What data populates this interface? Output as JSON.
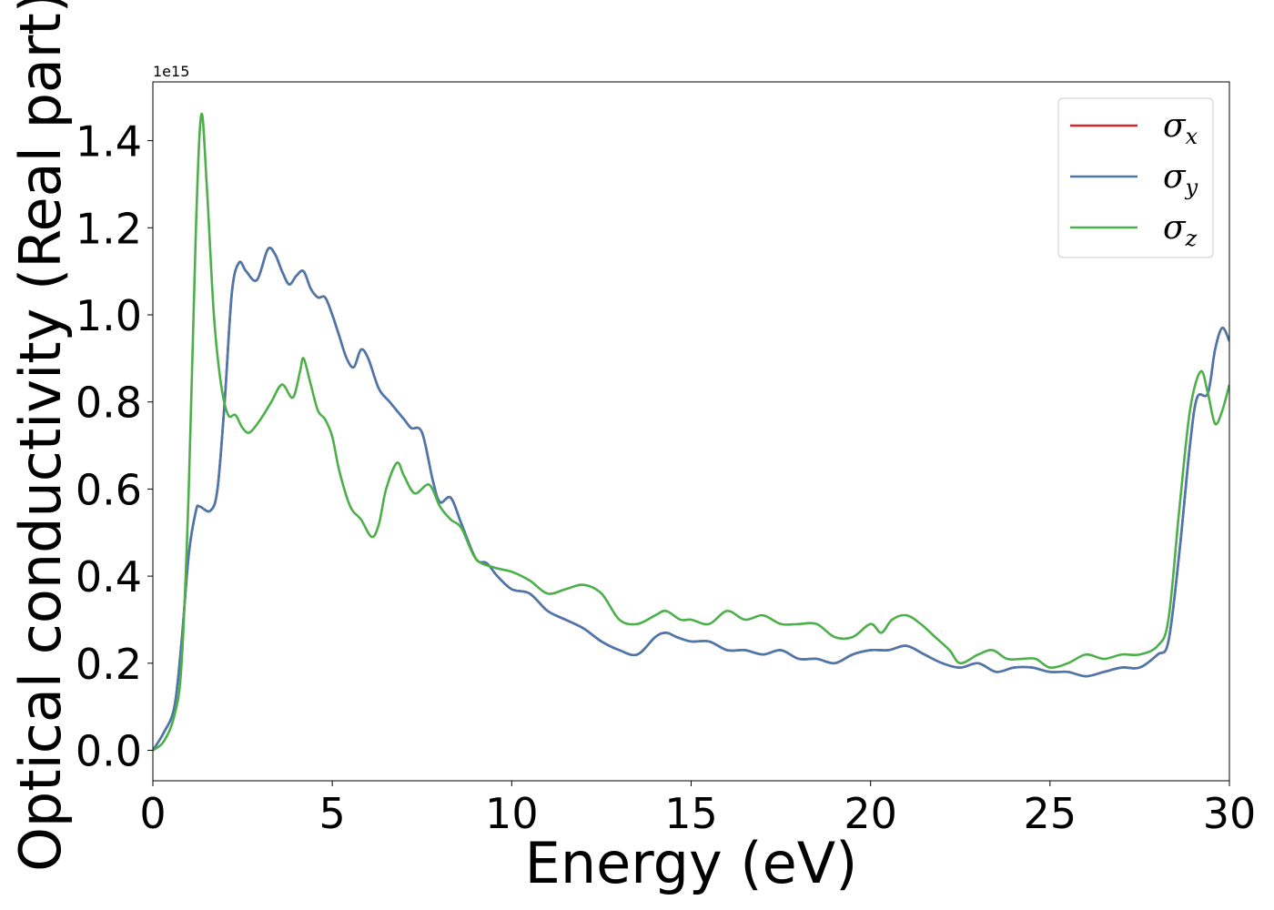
{
  "chart_data": {
    "type": "line",
    "xlabel": "Energy (eV)",
    "ylabel": "Optical conductivity (Real part)",
    "y_offset_label": "1e15",
    "xlim": [
      0,
      30
    ],
    "ylim": [
      -0.07,
      1.535
    ],
    "x_ticks": [
      0,
      5,
      10,
      15,
      20,
      25,
      30
    ],
    "x_tick_labels": [
      "0",
      "5",
      "10",
      "15",
      "20",
      "25",
      "30"
    ],
    "y_ticks": [
      0.0,
      0.2,
      0.4,
      0.6,
      0.8,
      1.0,
      1.2,
      1.4
    ],
    "y_tick_labels": [
      "0.0",
      "0.2",
      "0.4",
      "0.6",
      "0.8",
      "1.0",
      "1.2",
      "1.4"
    ],
    "grid": false,
    "legend_position": "top-right",
    "series": [
      {
        "name": "σ",
        "subscript": "x",
        "color": "#d62728",
        "points": [
          [
            0,
            0.0
          ],
          [
            0.3,
            0.04
          ],
          [
            0.6,
            0.1
          ],
          [
            0.8,
            0.25
          ],
          [
            1.0,
            0.45
          ],
          [
            1.2,
            0.55
          ],
          [
            1.3,
            0.56
          ],
          [
            1.6,
            0.55
          ],
          [
            1.8,
            0.6
          ],
          [
            2.0,
            0.8
          ],
          [
            2.2,
            1.05
          ],
          [
            2.4,
            1.12
          ],
          [
            2.6,
            1.1
          ],
          [
            2.9,
            1.08
          ],
          [
            3.2,
            1.15
          ],
          [
            3.4,
            1.14
          ],
          [
            3.6,
            1.1
          ],
          [
            3.8,
            1.07
          ],
          [
            4.0,
            1.09
          ],
          [
            4.2,
            1.1
          ],
          [
            4.4,
            1.06
          ],
          [
            4.6,
            1.04
          ],
          [
            4.8,
            1.04
          ],
          [
            5.0,
            1.0
          ],
          [
            5.2,
            0.95
          ],
          [
            5.4,
            0.9
          ],
          [
            5.6,
            0.88
          ],
          [
            5.8,
            0.92
          ],
          [
            6.0,
            0.9
          ],
          [
            6.3,
            0.83
          ],
          [
            6.6,
            0.8
          ],
          [
            7.0,
            0.76
          ],
          [
            7.2,
            0.74
          ],
          [
            7.5,
            0.73
          ],
          [
            7.8,
            0.62
          ],
          [
            8.0,
            0.57
          ],
          [
            8.3,
            0.58
          ],
          [
            8.6,
            0.52
          ],
          [
            9.0,
            0.44
          ],
          [
            9.3,
            0.43
          ],
          [
            9.6,
            0.4
          ],
          [
            10.0,
            0.37
          ],
          [
            10.5,
            0.36
          ],
          [
            11.0,
            0.32
          ],
          [
            11.5,
            0.3
          ],
          [
            12.0,
            0.28
          ],
          [
            12.5,
            0.25
          ],
          [
            13.0,
            0.23
          ],
          [
            13.5,
            0.22
          ],
          [
            14.0,
            0.26
          ],
          [
            14.3,
            0.27
          ],
          [
            14.6,
            0.26
          ],
          [
            15.0,
            0.25
          ],
          [
            15.5,
            0.25
          ],
          [
            16.0,
            0.23
          ],
          [
            16.5,
            0.23
          ],
          [
            17.0,
            0.22
          ],
          [
            17.5,
            0.23
          ],
          [
            18.0,
            0.21
          ],
          [
            18.5,
            0.21
          ],
          [
            19.0,
            0.2
          ],
          [
            19.5,
            0.22
          ],
          [
            20.0,
            0.23
          ],
          [
            20.5,
            0.23
          ],
          [
            21.0,
            0.24
          ],
          [
            21.5,
            0.22
          ],
          [
            22.0,
            0.2
          ],
          [
            22.5,
            0.19
          ],
          [
            23.0,
            0.2
          ],
          [
            23.5,
            0.18
          ],
          [
            24.0,
            0.19
          ],
          [
            24.5,
            0.19
          ],
          [
            25.0,
            0.18
          ],
          [
            25.5,
            0.18
          ],
          [
            26.0,
            0.17
          ],
          [
            26.5,
            0.18
          ],
          [
            27.0,
            0.19
          ],
          [
            27.5,
            0.19
          ],
          [
            28.0,
            0.22
          ],
          [
            28.3,
            0.25
          ],
          [
            28.6,
            0.45
          ],
          [
            28.9,
            0.7
          ],
          [
            29.1,
            0.81
          ],
          [
            29.4,
            0.82
          ],
          [
            29.6,
            0.92
          ],
          [
            29.8,
            0.97
          ],
          [
            30.0,
            0.94
          ]
        ]
      },
      {
        "name": "σ",
        "subscript": "y",
        "color": "#4a78ad",
        "points": [
          [
            0,
            0.0
          ],
          [
            0.3,
            0.04
          ],
          [
            0.6,
            0.1
          ],
          [
            0.8,
            0.25
          ],
          [
            1.0,
            0.45
          ],
          [
            1.2,
            0.55
          ],
          [
            1.3,
            0.56
          ],
          [
            1.6,
            0.55
          ],
          [
            1.8,
            0.6
          ],
          [
            2.0,
            0.8
          ],
          [
            2.2,
            1.05
          ],
          [
            2.4,
            1.12
          ],
          [
            2.6,
            1.1
          ],
          [
            2.9,
            1.08
          ],
          [
            3.2,
            1.15
          ],
          [
            3.4,
            1.14
          ],
          [
            3.6,
            1.1
          ],
          [
            3.8,
            1.07
          ],
          [
            4.0,
            1.09
          ],
          [
            4.2,
            1.1
          ],
          [
            4.4,
            1.06
          ],
          [
            4.6,
            1.04
          ],
          [
            4.8,
            1.04
          ],
          [
            5.0,
            1.0
          ],
          [
            5.2,
            0.95
          ],
          [
            5.4,
            0.9
          ],
          [
            5.6,
            0.88
          ],
          [
            5.8,
            0.92
          ],
          [
            6.0,
            0.9
          ],
          [
            6.3,
            0.83
          ],
          [
            6.6,
            0.8
          ],
          [
            7.0,
            0.76
          ],
          [
            7.2,
            0.74
          ],
          [
            7.5,
            0.73
          ],
          [
            7.8,
            0.62
          ],
          [
            8.0,
            0.57
          ],
          [
            8.3,
            0.58
          ],
          [
            8.6,
            0.52
          ],
          [
            9.0,
            0.44
          ],
          [
            9.3,
            0.43
          ],
          [
            9.6,
            0.4
          ],
          [
            10.0,
            0.37
          ],
          [
            10.5,
            0.36
          ],
          [
            11.0,
            0.32
          ],
          [
            11.5,
            0.3
          ],
          [
            12.0,
            0.28
          ],
          [
            12.5,
            0.25
          ],
          [
            13.0,
            0.23
          ],
          [
            13.5,
            0.22
          ],
          [
            14.0,
            0.26
          ],
          [
            14.3,
            0.27
          ],
          [
            14.6,
            0.26
          ],
          [
            15.0,
            0.25
          ],
          [
            15.5,
            0.25
          ],
          [
            16.0,
            0.23
          ],
          [
            16.5,
            0.23
          ],
          [
            17.0,
            0.22
          ],
          [
            17.5,
            0.23
          ],
          [
            18.0,
            0.21
          ],
          [
            18.5,
            0.21
          ],
          [
            19.0,
            0.2
          ],
          [
            19.5,
            0.22
          ],
          [
            20.0,
            0.23
          ],
          [
            20.5,
            0.23
          ],
          [
            21.0,
            0.24
          ],
          [
            21.5,
            0.22
          ],
          [
            22.0,
            0.2
          ],
          [
            22.5,
            0.19
          ],
          [
            23.0,
            0.2
          ],
          [
            23.5,
            0.18
          ],
          [
            24.0,
            0.19
          ],
          [
            24.5,
            0.19
          ],
          [
            25.0,
            0.18
          ],
          [
            25.5,
            0.18
          ],
          [
            26.0,
            0.17
          ],
          [
            26.5,
            0.18
          ],
          [
            27.0,
            0.19
          ],
          [
            27.5,
            0.19
          ],
          [
            28.0,
            0.22
          ],
          [
            28.3,
            0.25
          ],
          [
            28.6,
            0.45
          ],
          [
            28.9,
            0.7
          ],
          [
            29.1,
            0.81
          ],
          [
            29.4,
            0.82
          ],
          [
            29.6,
            0.92
          ],
          [
            29.8,
            0.97
          ],
          [
            30.0,
            0.94
          ]
        ]
      },
      {
        "name": "σ",
        "subscript": "z",
        "color": "#4daf4a",
        "points": [
          [
            0,
            0.0
          ],
          [
            0.3,
            0.02
          ],
          [
            0.6,
            0.08
          ],
          [
            0.8,
            0.2
          ],
          [
            1.0,
            0.6
          ],
          [
            1.2,
            1.2
          ],
          [
            1.35,
            1.46
          ],
          [
            1.5,
            1.3
          ],
          [
            1.7,
            1.0
          ],
          [
            1.9,
            0.84
          ],
          [
            2.1,
            0.77
          ],
          [
            2.3,
            0.77
          ],
          [
            2.5,
            0.74
          ],
          [
            2.7,
            0.73
          ],
          [
            3.0,
            0.76
          ],
          [
            3.3,
            0.8
          ],
          [
            3.6,
            0.84
          ],
          [
            3.9,
            0.81
          ],
          [
            4.1,
            0.87
          ],
          [
            4.2,
            0.9
          ],
          [
            4.4,
            0.84
          ],
          [
            4.6,
            0.78
          ],
          [
            4.8,
            0.76
          ],
          [
            5.0,
            0.72
          ],
          [
            5.2,
            0.64
          ],
          [
            5.5,
            0.56
          ],
          [
            5.8,
            0.53
          ],
          [
            6.1,
            0.49
          ],
          [
            6.3,
            0.52
          ],
          [
            6.5,
            0.6
          ],
          [
            6.8,
            0.66
          ],
          [
            7.0,
            0.63
          ],
          [
            7.3,
            0.59
          ],
          [
            7.7,
            0.61
          ],
          [
            8.0,
            0.56
          ],
          [
            8.3,
            0.53
          ],
          [
            8.6,
            0.51
          ],
          [
            9.0,
            0.44
          ],
          [
            9.5,
            0.42
          ],
          [
            10.0,
            0.41
          ],
          [
            10.5,
            0.39
          ],
          [
            11.0,
            0.36
          ],
          [
            11.5,
            0.37
          ],
          [
            12.0,
            0.38
          ],
          [
            12.5,
            0.36
          ],
          [
            13.0,
            0.3
          ],
          [
            13.5,
            0.29
          ],
          [
            14.0,
            0.31
          ],
          [
            14.3,
            0.32
          ],
          [
            14.7,
            0.3
          ],
          [
            15.0,
            0.3
          ],
          [
            15.5,
            0.29
          ],
          [
            16.0,
            0.32
          ],
          [
            16.5,
            0.3
          ],
          [
            17.0,
            0.31
          ],
          [
            17.5,
            0.29
          ],
          [
            18.0,
            0.29
          ],
          [
            18.5,
            0.29
          ],
          [
            19.0,
            0.26
          ],
          [
            19.5,
            0.26
          ],
          [
            20.0,
            0.29
          ],
          [
            20.3,
            0.27
          ],
          [
            20.6,
            0.3
          ],
          [
            21.0,
            0.31
          ],
          [
            21.4,
            0.29
          ],
          [
            21.8,
            0.26
          ],
          [
            22.2,
            0.23
          ],
          [
            22.5,
            0.2
          ],
          [
            23.0,
            0.22
          ],
          [
            23.4,
            0.23
          ],
          [
            23.8,
            0.21
          ],
          [
            24.2,
            0.21
          ],
          [
            24.6,
            0.21
          ],
          [
            25.0,
            0.19
          ],
          [
            25.5,
            0.2
          ],
          [
            26.0,
            0.22
          ],
          [
            26.5,
            0.21
          ],
          [
            27.0,
            0.22
          ],
          [
            27.5,
            0.22
          ],
          [
            28.0,
            0.24
          ],
          [
            28.3,
            0.3
          ],
          [
            28.6,
            0.55
          ],
          [
            28.9,
            0.78
          ],
          [
            29.2,
            0.87
          ],
          [
            29.4,
            0.82
          ],
          [
            29.6,
            0.75
          ],
          [
            29.8,
            0.78
          ],
          [
            30.0,
            0.84
          ]
        ]
      }
    ]
  }
}
